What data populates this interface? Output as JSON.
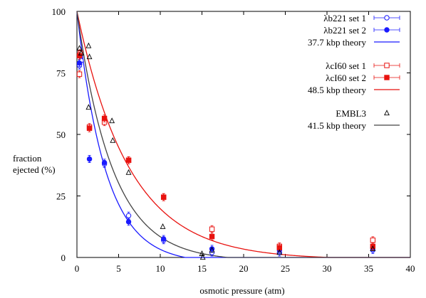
{
  "chart_data": {
    "type": "scatter",
    "title": "",
    "xlabel": "osmotic pressure (atm)",
    "ylabel": [
      "fraction",
      "ejected (%)"
    ],
    "xlim": [
      0,
      40
    ],
    "ylim": [
      0,
      100
    ],
    "x_ticks": [
      "0",
      "5",
      "10",
      "15",
      "20",
      "25",
      "30",
      "35",
      "40"
    ],
    "y_ticks": [
      "0",
      "25",
      "50",
      "75",
      "100"
    ],
    "x_tick_values": [
      0,
      5,
      10,
      15,
      20,
      25,
      30,
      35,
      40
    ],
    "y_tick_values": [
      0,
      25,
      50,
      75,
      100
    ],
    "grid": false,
    "legend_position": "top-right",
    "series": [
      {
        "name": "λb221 set 1",
        "marker": "circle-open",
        "color": "#1a1aff",
        "errorbars": true,
        "points": [
          [
            0.3,
            78
          ],
          [
            0.5,
            80
          ],
          [
            1.5,
            40
          ],
          [
            3.3,
            38
          ],
          [
            6.2,
            17
          ],
          [
            10.4,
            7
          ],
          [
            16.2,
            2
          ],
          [
            24.3,
            2
          ],
          [
            35.5,
            3
          ]
        ]
      },
      {
        "name": "λb221 set 2",
        "marker": "circle-filled",
        "color": "#1a1aff",
        "errorbars": true,
        "points": [
          [
            0.3,
            79
          ],
          [
            1.5,
            40
          ],
          [
            3.3,
            38.5
          ],
          [
            6.2,
            14.5
          ],
          [
            10.4,
            7.5
          ],
          [
            16.2,
            3.5
          ],
          [
            24.3,
            3
          ],
          [
            35.5,
            4
          ]
        ]
      },
      {
        "name": "λcI60 set 1",
        "marker": "square-open",
        "color": "#e8120f",
        "errorbars": true,
        "points": [
          [
            0.3,
            74.5
          ],
          [
            0.4,
            83
          ],
          [
            1.5,
            53
          ],
          [
            3.3,
            55
          ],
          [
            6.2,
            39.5
          ],
          [
            10.4,
            24.5
          ],
          [
            16.2,
            11.5
          ],
          [
            24.3,
            4.5
          ],
          [
            35.5,
            7
          ]
        ]
      },
      {
        "name": "λcI60 set 2",
        "marker": "square-filled",
        "color": "#e8120f",
        "errorbars": true,
        "points": [
          [
            0.3,
            82
          ],
          [
            1.5,
            52.5
          ],
          [
            3.3,
            56.5
          ],
          [
            6.2,
            39.5
          ],
          [
            10.4,
            24.5
          ],
          [
            16.2,
            8.5
          ],
          [
            24.3,
            4
          ],
          [
            35.5,
            4.5
          ]
        ]
      },
      {
        "name": "EMBL3",
        "marker": "triangle-open",
        "color": "#000000",
        "errorbars": false,
        "points": [
          [
            0.3,
            85
          ],
          [
            0.5,
            83
          ],
          [
            1.4,
            86
          ],
          [
            1.5,
            81.5
          ],
          [
            1.4,
            61
          ],
          [
            4.2,
            55.5
          ],
          [
            4.3,
            47.5
          ],
          [
            6.2,
            34.5
          ],
          [
            10.3,
            12.5
          ],
          [
            15.0,
            1.5
          ],
          [
            15.1,
            0
          ],
          [
            16.2,
            3
          ],
          [
            24.3,
            2
          ],
          [
            35.5,
            3.5
          ]
        ]
      }
    ],
    "curves": [
      {
        "name": "37.7 kbp theory",
        "color": "#1a1aff",
        "decay": 3.45,
        "cutoff": 13.0,
        "points": [
          [
            0,
            100
          ],
          [
            1,
            75
          ],
          [
            2,
            56.2
          ],
          [
            3,
            41.2
          ],
          [
            4,
            31
          ],
          [
            5,
            23.2
          ],
          [
            6,
            17.2
          ],
          [
            7,
            12.6
          ],
          [
            8,
            9.2
          ],
          [
            9,
            6.6
          ],
          [
            10,
            4.5
          ],
          [
            11,
            2.8
          ],
          [
            12,
            1.3
          ],
          [
            13,
            0
          ],
          [
            40,
            0
          ]
        ]
      },
      {
        "name": "48.5 kbp theory",
        "color": "#e8120f",
        "decay": 6.3,
        "cutoff": 30.3,
        "points": [
          [
            0,
            100
          ],
          [
            1,
            85.2
          ],
          [
            2,
            72.6
          ],
          [
            3,
            61.9
          ],
          [
            4,
            52.8
          ],
          [
            5,
            45
          ],
          [
            6,
            38.4
          ],
          [
            8,
            27.8
          ],
          [
            10,
            20.2
          ],
          [
            12,
            14.7
          ],
          [
            14,
            10.6
          ],
          [
            16,
            7.7
          ],
          [
            18,
            5.5
          ],
          [
            20,
            3.9
          ],
          [
            22,
            2.8
          ],
          [
            24,
            1.8
          ],
          [
            26,
            1.1
          ],
          [
            28,
            0.5
          ],
          [
            30.3,
            0
          ],
          [
            40,
            0
          ]
        ]
      },
      {
        "name": "41.5 kbp theory",
        "color": "#444444",
        "decay": 4.3,
        "cutoff": 18.1,
        "points": [
          [
            0,
            100
          ],
          [
            1,
            79.2
          ],
          [
            2,
            62.8
          ],
          [
            3,
            49.7
          ],
          [
            4,
            39.4
          ],
          [
            5,
            31.3
          ],
          [
            6,
            24.8
          ],
          [
            7,
            19.6
          ],
          [
            8,
            15.5
          ],
          [
            9,
            12.2
          ],
          [
            10,
            9.6
          ],
          [
            11,
            7.5
          ],
          [
            12,
            5.8
          ],
          [
            13,
            4.3
          ],
          [
            14,
            3.1
          ],
          [
            15,
            2.1
          ],
          [
            16,
            1.2
          ],
          [
            17,
            0.5
          ],
          [
            18.1,
            0
          ],
          [
            40,
            0
          ]
        ]
      }
    ],
    "legend_groups": [
      [
        "λb221 set 1",
        "λb221 set 2",
        "37.7 kbp theory"
      ],
      [
        "λcI60 set 1",
        "λcI60 set 2",
        "48.5 kbp theory"
      ],
      [
        "EMBL3",
        "41.5 kbp theory"
      ]
    ]
  }
}
